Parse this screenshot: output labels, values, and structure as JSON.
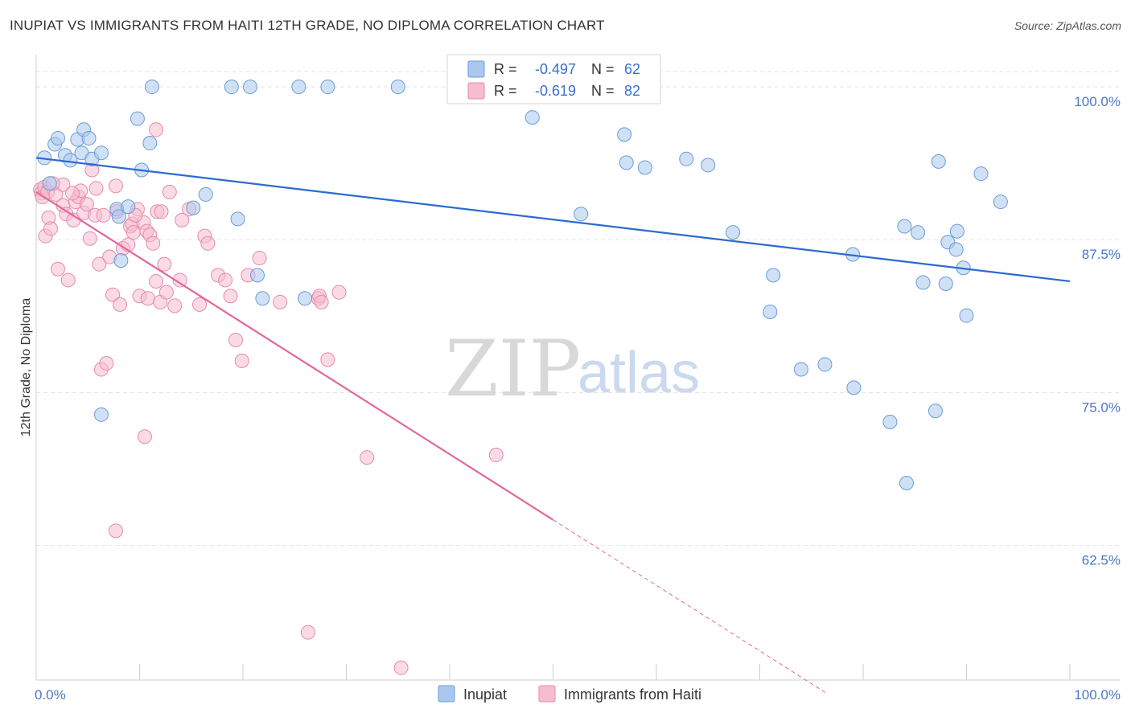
{
  "title": "INUPIAT VS IMMIGRANTS FROM HAITI 12TH GRADE, NO DIPLOMA CORRELATION CHART",
  "source": "Source: ZipAtlas.com",
  "watermark": {
    "zip": "ZIP",
    "atlas": "atlas"
  },
  "legend": {
    "r_label": "R =",
    "n_label": "N =",
    "rows": [
      {
        "r": "-0.497",
        "n": "62"
      },
      {
        "r": "-0.619",
        "n": "82"
      }
    ]
  },
  "colors": {
    "blue_fill": "#aac8ef",
    "blue_stroke": "#6b9bd8",
    "blue_line": "#2a6bd0",
    "pink_fill": "#f6bdd0",
    "pink_stroke": "#e88aa8",
    "pink_line": "#e0689a",
    "grid": "#e2e2e2",
    "axis_text": "#4a78c8"
  },
  "chart_data": {
    "type": "scatter",
    "title": "INUPIAT VS IMMIGRANTS FROM HAITI 12TH GRADE, NO DIPLOMA CORRELATION CHART",
    "ylabel": "12th Grade, No Diploma",
    "xlabel": "",
    "xlim": [
      0,
      100
    ],
    "ylim": [
      51.5,
      102.5
    ],
    "x_tick_labels": [
      "0.0%",
      "100.0%"
    ],
    "y_ticks": [
      100.0,
      87.5,
      75.0,
      62.5
    ],
    "y_tick_labels": [
      "100.0%",
      "87.5%",
      "75.0%",
      "62.5%"
    ],
    "grid": true,
    "legend_position": "top-center",
    "series": [
      {
        "name": "Inupiat",
        "color": "blue",
        "r": -0.497,
        "n": 62,
        "trend": {
          "x": [
            0,
            100
          ],
          "y": [
            94.2,
            84.1
          ]
        },
        "points": [
          [
            0.8,
            94.2
          ],
          [
            1.3,
            92.1
          ],
          [
            1.8,
            95.3
          ],
          [
            2.1,
            95.8
          ],
          [
            2.8,
            94.4
          ],
          [
            3.3,
            94
          ],
          [
            4,
            95.7
          ],
          [
            4.4,
            94.6
          ],
          [
            4.6,
            96.5
          ],
          [
            5.1,
            95.8
          ],
          [
            5.4,
            94.1
          ],
          [
            6.3,
            94.6
          ],
          [
            6.3,
            73.2
          ],
          [
            7.8,
            90
          ],
          [
            8,
            89.4
          ],
          [
            8.2,
            85.8
          ],
          [
            8.9,
            90.2
          ],
          [
            9.8,
            97.4
          ],
          [
            10.2,
            93.2
          ],
          [
            11,
            95.4
          ],
          [
            11.2,
            100
          ],
          [
            15.2,
            90.1
          ],
          [
            16.4,
            91.2
          ],
          [
            18.9,
            100
          ],
          [
            20.7,
            100
          ],
          [
            19.5,
            89.2
          ],
          [
            21.4,
            84.6
          ],
          [
            21.9,
            82.7
          ],
          [
            25.4,
            100
          ],
          [
            26,
            82.7
          ],
          [
            28.2,
            100
          ],
          [
            35,
            100
          ],
          [
            47.1,
            100
          ],
          [
            48,
            97.5
          ],
          [
            52.7,
            89.6
          ],
          [
            56.9,
            96.1
          ],
          [
            57.1,
            93.8
          ],
          [
            58.9,
            93.4
          ],
          [
            62.9,
            94.1
          ],
          [
            65,
            93.6
          ],
          [
            67.4,
            88.1
          ],
          [
            71.3,
            84.6
          ],
          [
            71,
            81.6
          ],
          [
            74,
            76.9
          ],
          [
            76.3,
            77.3
          ],
          [
            79.1,
            75.4
          ],
          [
            79,
            86.3
          ],
          [
            82.6,
            72.6
          ],
          [
            84,
            88.6
          ],
          [
            84.2,
            67.6
          ],
          [
            85.3,
            88.1
          ],
          [
            85.8,
            84
          ],
          [
            87,
            73.5
          ],
          [
            87.3,
            93.9
          ],
          [
            88,
            83.9
          ],
          [
            88.2,
            87.3
          ],
          [
            89,
            86.7
          ],
          [
            89.1,
            88.2
          ],
          [
            89.7,
            85.2
          ],
          [
            90,
            81.3
          ],
          [
            91.4,
            92.9
          ],
          [
            93.3,
            90.6
          ]
        ]
      },
      {
        "name": "Immigrants from Haiti",
        "color": "pink",
        "r": -0.619,
        "n": 82,
        "trend": {
          "x": [
            0,
            50
          ],
          "y": [
            91.4,
            64.6
          ]
        },
        "trend_dashed": {
          "x": [
            50,
            76.5
          ],
          "y": [
            64.6,
            50.4
          ]
        },
        "points": [
          [
            0.4,
            91.6
          ],
          [
            0.5,
            91.3
          ],
          [
            0.6,
            91.0
          ],
          [
            0.8,
            91.8
          ],
          [
            0.9,
            87.8
          ],
          [
            1.1,
            91.4
          ],
          [
            1.2,
            89.3
          ],
          [
            1.4,
            88.4
          ],
          [
            1.9,
            91.2
          ],
          [
            2.1,
            85.1
          ],
          [
            2.6,
            92
          ],
          [
            2.6,
            90.3
          ],
          [
            2.9,
            89.6
          ],
          [
            3.1,
            84.2
          ],
          [
            3.6,
            89.1
          ],
          [
            3.8,
            90.6
          ],
          [
            4.1,
            91
          ],
          [
            4.3,
            91.5
          ],
          [
            4.6,
            89.7
          ],
          [
            4.9,
            90.4
          ],
          [
            5.2,
            87.6
          ],
          [
            5.4,
            93.2
          ],
          [
            5.7,
            89.5
          ],
          [
            6.1,
            85.5
          ],
          [
            6.3,
            76.9
          ],
          [
            6.5,
            89.5
          ],
          [
            6.8,
            77.4
          ],
          [
            7.1,
            86.1
          ],
          [
            7.4,
            83
          ],
          [
            7.8,
            89.8
          ],
          [
            7.7,
            91.9
          ],
          [
            8.1,
            82.2
          ],
          [
            8.4,
            86.8
          ],
          [
            8.9,
            87.1
          ],
          [
            9.1,
            88.6
          ],
          [
            9.3,
            88.8
          ],
          [
            9.4,
            88.1
          ],
          [
            9.8,
            90
          ],
          [
            10,
            82.9
          ],
          [
            10.4,
            88.9
          ],
          [
            10.7,
            88.2
          ],
          [
            10.8,
            82.7
          ],
          [
            11,
            87.9
          ],
          [
            10.5,
            71.4
          ],
          [
            11.3,
            87.2
          ],
          [
            11.6,
            84.1
          ],
          [
            11.6,
            96.5
          ],
          [
            12,
            82.4
          ],
          [
            11.7,
            89.8
          ],
          [
            12.1,
            89.8
          ],
          [
            12.4,
            85.5
          ],
          [
            12.6,
            83.2
          ],
          [
            12.9,
            91.4
          ],
          [
            13.4,
            82.1
          ],
          [
            13.9,
            84.2
          ],
          [
            14.1,
            89.1
          ],
          [
            14.8,
            90
          ],
          [
            15.8,
            82.2
          ],
          [
            16.3,
            87.8
          ],
          [
            16.6,
            87.2
          ],
          [
            17.6,
            84.6
          ],
          [
            18.3,
            84.2
          ],
          [
            18.8,
            82.9
          ],
          [
            19.3,
            79.3
          ],
          [
            19.9,
            77.6
          ],
          [
            20.5,
            84.6
          ],
          [
            21.6,
            86
          ],
          [
            23.6,
            82.4
          ],
          [
            26.3,
            55.4
          ],
          [
            27.3,
            82.7
          ],
          [
            27.4,
            82.9
          ],
          [
            27.6,
            82.4
          ],
          [
            28.2,
            77.7
          ],
          [
            29.3,
            83.2
          ],
          [
            32,
            69.7
          ],
          [
            35.3,
            52.5
          ],
          [
            44.5,
            69.9
          ],
          [
            7.7,
            63.7
          ],
          [
            9.6,
            89.5
          ],
          [
            3.5,
            91.3
          ],
          [
            1.6,
            92.1
          ],
          [
            5.8,
            91.7
          ]
        ]
      }
    ]
  },
  "bottom_legend": [
    "Inupiat",
    "Immigrants from Haiti"
  ]
}
